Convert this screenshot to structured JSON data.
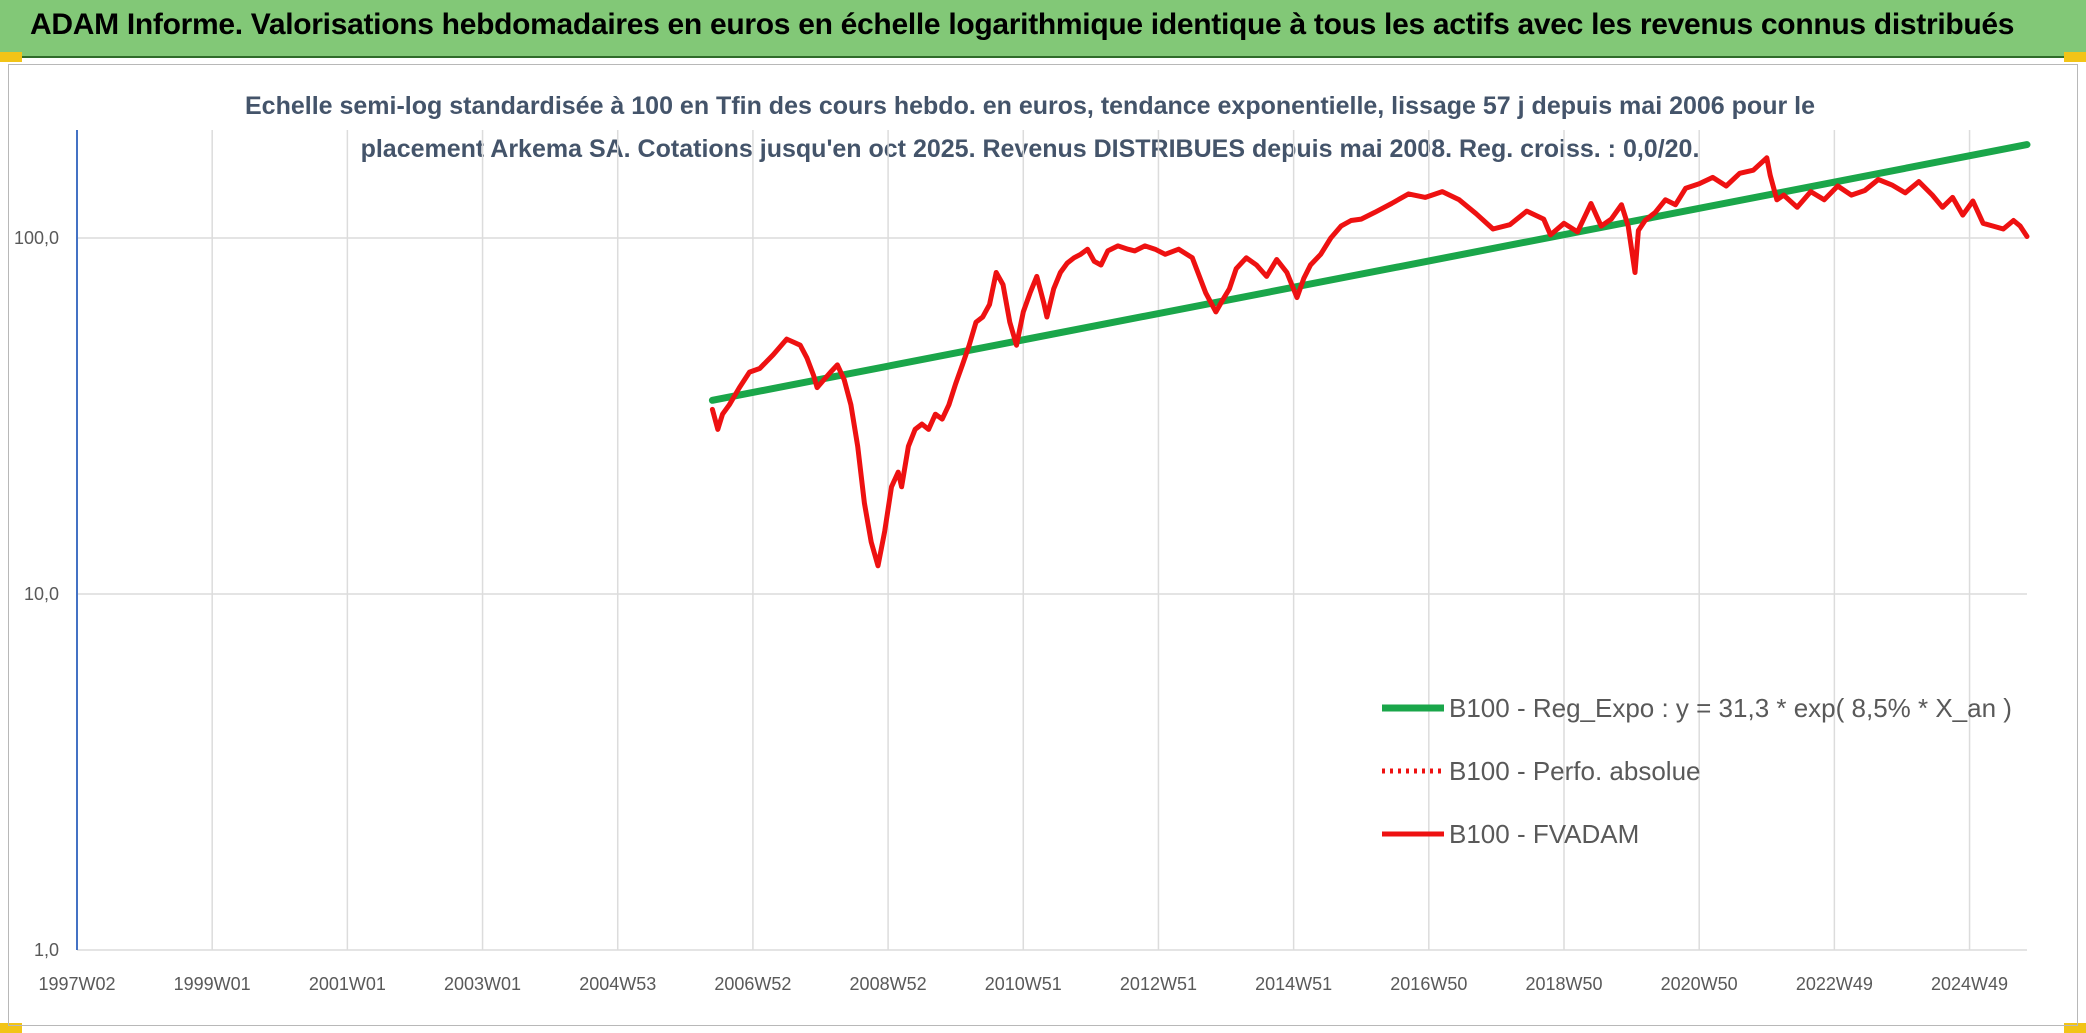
{
  "header": {
    "title": "ADAM Informe. Valorisations hebdomadaires en euros en échelle logarithmique identique à tous les actifs avec les revenus connus distribués"
  },
  "colors": {
    "header_bg": "#82c877",
    "reg_line": "#1aa64a",
    "fvadam_line": "#ee1111",
    "perfo_line": "#ee1111",
    "grid": "#dcdcdc",
    "axis": "#4472c4"
  },
  "chart_data": {
    "type": "line",
    "title_line1": "Echelle semi-log standardisée à 100 en Tfin des cours hebdo. en euros, tendance exponentielle, lissage 57 j depuis mai 2006 pour le",
    "title_line2": "placement Arkema SA. Cotations jusqu'en oct 2025. Revenus DISTRIBUES depuis mai 2008. Reg. croiss. : 0,0/20.",
    "y_scale": "log",
    "ylim": [
      1,
      200
    ],
    "y_ticks": [
      1,
      10,
      100
    ],
    "y_tick_labels": [
      "1,0",
      "10,0",
      "100,0"
    ],
    "xlim": [
      1997.0,
      2025.85
    ],
    "x_ticks": [
      1997.0,
      1999.0,
      2001.0,
      2003.0,
      2005.0,
      2007.0,
      2009.0,
      2011.0,
      2013.0,
      2015.0,
      2017.0,
      2019.0,
      2021.0,
      2023.0,
      2025.0
    ],
    "x_tick_labels": [
      "1997W02",
      "1999W01",
      "2001W01",
      "2003W01",
      "2004W53",
      "2006W52",
      "2008W52",
      "2010W51",
      "2012W51",
      "2014W51",
      "2016W50",
      "2018W50",
      "2020W50",
      "2022W49",
      "2024W49"
    ],
    "grid": true,
    "legend_position": "bottom-right",
    "series": [
      {
        "name": "B100 - Reg_Expo : y = 31,3 * exp( 8,5% *  X_an )",
        "style": "solid",
        "color": "#1aa64a",
        "x": [
          2006.4,
          2025.85
        ],
        "y": [
          35,
          183
        ]
      },
      {
        "name": "B100 - Perfo. absolue",
        "style": "dotted",
        "color": "#ee1111",
        "x": [],
        "y": []
      },
      {
        "name": "B100 - FVADAM",
        "style": "solid",
        "color": "#ee1111",
        "x": [
          2006.4,
          2006.48,
          2006.55,
          2006.65,
          2006.8,
          2006.95,
          2007.1,
          2007.3,
          2007.5,
          2007.6,
          2007.7,
          2007.8,
          2007.9,
          2007.95,
          2008.05,
          2008.15,
          2008.25,
          2008.35,
          2008.45,
          2008.55,
          2008.65,
          2008.75,
          2008.85,
          2008.95,
          2009.05,
          2009.15,
          2009.2,
          2009.3,
          2009.4,
          2009.5,
          2009.6,
          2009.7,
          2009.8,
          2009.9,
          2010.0,
          2010.1,
          2010.2,
          2010.3,
          2010.4,
          2010.5,
          2010.6,
          2010.7,
          2010.8,
          2010.9,
          2011.0,
          2011.1,
          2011.2,
          2011.3,
          2011.35,
          2011.45,
          2011.55,
          2011.65,
          2011.75,
          2011.85,
          2011.95,
          2012.05,
          2012.15,
          2012.25,
          2012.4,
          2012.55,
          2012.65,
          2012.8,
          2012.95,
          2013.1,
          2013.3,
          2013.5,
          2013.7,
          2013.85,
          2013.95,
          2014.05,
          2014.15,
          2014.3,
          2014.45,
          2014.6,
          2014.75,
          2014.9,
          2015.05,
          2015.15,
          2015.25,
          2015.4,
          2015.55,
          2015.7,
          2015.85,
          2016.0,
          2016.2,
          2016.45,
          2016.7,
          2016.95,
          2017.2,
          2017.45,
          2017.7,
          2017.95,
          2018.2,
          2018.45,
          2018.7,
          2018.8,
          2019.0,
          2019.2,
          2019.4,
          2019.55,
          2019.7,
          2019.85,
          2019.95,
          2020.05,
          2020.1,
          2020.2,
          2020.35,
          2020.5,
          2020.65,
          2020.8,
          2021.0,
          2021.2,
          2021.4,
          2021.6,
          2021.8,
          2022.0,
          2022.05,
          2022.15,
          2022.25,
          2022.45,
          2022.65,
          2022.85,
          2023.05,
          2023.25,
          2023.45,
          2023.65,
          2023.85,
          2024.05,
          2024.25,
          2024.45,
          2024.6,
          2024.75,
          2024.9,
          2025.05,
          2025.2,
          2025.35,
          2025.5,
          2025.65,
          2025.75,
          2025.85
        ],
        "y": [
          33,
          29,
          32,
          34,
          38,
          42,
          43,
          47,
          52,
          51,
          50,
          46,
          41,
          38,
          40,
          42,
          44,
          40,
          34,
          26,
          18,
          14,
          12,
          15,
          20,
          22,
          20,
          26,
          29,
          30,
          29,
          32,
          31,
          34,
          39,
          44,
          50,
          58,
          60,
          65,
          80,
          74,
          58,
          50,
          62,
          70,
          78,
          66,
          60,
          72,
          80,
          85,
          88,
          90,
          93,
          86,
          84,
          92,
          95,
          93,
          92,
          95,
          93,
          90,
          93,
          88,
          70,
          62,
          67,
          72,
          82,
          88,
          84,
          78,
          87,
          80,
          68,
          77,
          84,
          90,
          100,
          108,
          112,
          113,
          118,
          125,
          133,
          130,
          135,
          128,
          117,
          106,
          109,
          119,
          113,
          102,
          110,
          104,
          125,
          108,
          113,
          124,
          108,
          80,
          105,
          112,
          118,
          128,
          124,
          138,
          142,
          148,
          140,
          152,
          155,
          168,
          150,
          128,
          132,
          122,
          135,
          128,
          140,
          132,
          136,
          146,
          141,
          134,
          144,
          132,
          122,
          130,
          116,
          127,
          110,
          108,
          106,
          112,
          108,
          101
        ]
      }
    ]
  }
}
